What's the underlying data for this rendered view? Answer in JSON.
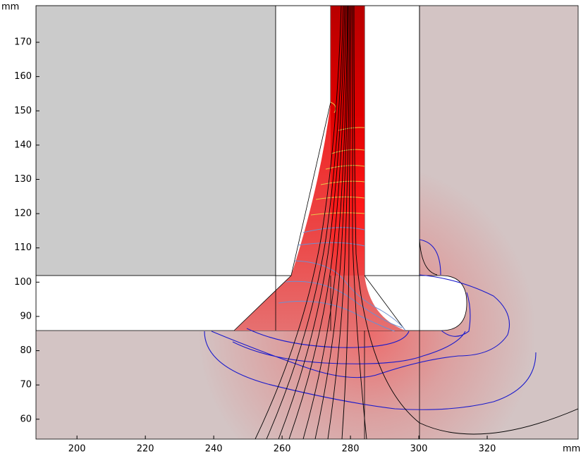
{
  "chart_data": {
    "type": "field",
    "xlabel": "mm",
    "ylabel": "mm",
    "xlim": [
      188,
      346.6
    ],
    "ylim": [
      54.2,
      180.7
    ],
    "xticks": [
      200,
      220,
      240,
      260,
      280,
      300,
      320
    ],
    "yticks": [
      60,
      70,
      80,
      90,
      100,
      110,
      120,
      130,
      140,
      150,
      160,
      170
    ]
  }
}
